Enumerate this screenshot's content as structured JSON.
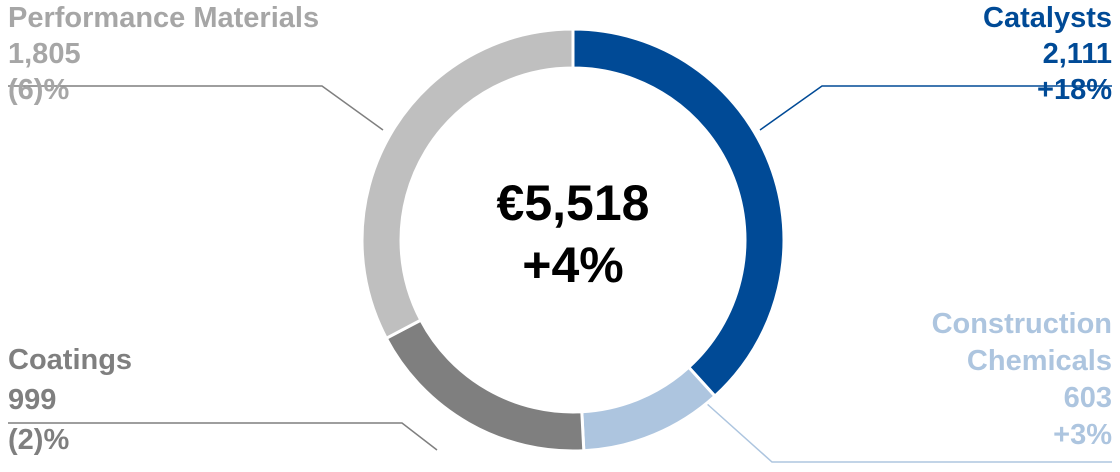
{
  "chart_data": {
    "type": "donut",
    "categories": [
      "Catalysts",
      "Construction Chemicals",
      "Coatings",
      "Performance Materials"
    ],
    "values": [
      2111,
      603,
      999,
      1805
    ],
    "value_labels": [
      "2,111",
      "603",
      "999",
      "1,805"
    ],
    "changes": [
      "+18%",
      "+3%",
      "(2)%",
      "(6)%"
    ],
    "colors": [
      "#004a96",
      "#adc5df",
      "#7f7f7f",
      "#bfbfbf"
    ],
    "center_label": "€5,518",
    "center_change": "+4%"
  }
}
